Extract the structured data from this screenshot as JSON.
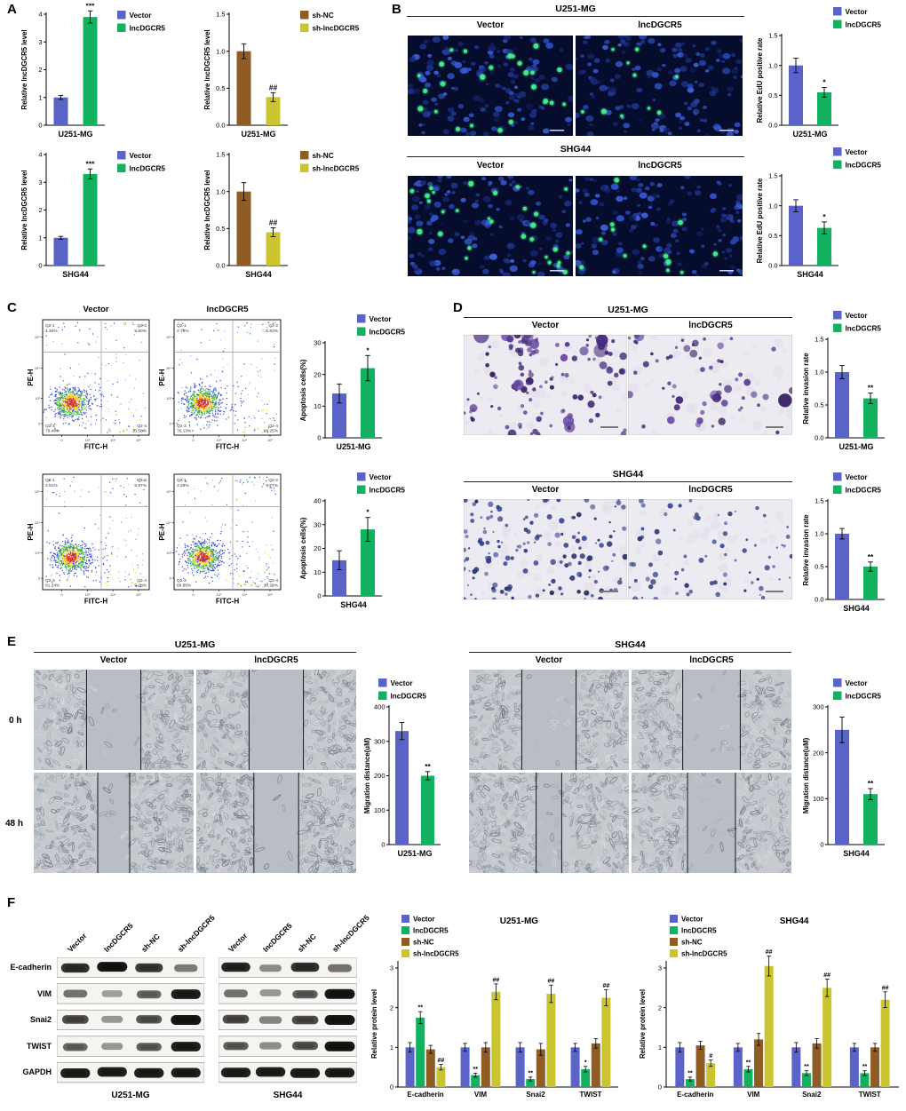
{
  "palette": {
    "Vector": "#5a63c8",
    "lncDGCR5": "#12b15f",
    "sh-NC": "#8e5c24",
    "sh-lncDGCR5": "#c9c42f"
  },
  "panels": {
    "A": {
      "label": "A",
      "charts": [
        {
          "ylabel": "Relative lncDGCR5 level",
          "xlabel": "U251-MG",
          "ymax": 4,
          "yticks": [
            0,
            1,
            2,
            3,
            4
          ],
          "legend": [
            "Vector",
            "lncDGCR5"
          ],
          "bars": [
            {
              "series": "Vector",
              "value": 1.0,
              "err": 0.07,
              "sig": ""
            },
            {
              "series": "lncDGCR5",
              "value": 3.9,
              "err": 0.22,
              "sig": "***"
            }
          ]
        },
        {
          "ylabel": "Relative lncDGCR5 level",
          "xlabel": "U251-MG",
          "ymax": 1.5,
          "yticks": [
            0,
            0.5,
            1,
            1.5
          ],
          "legend": [
            "sh-NC",
            "sh-lncDGCR5"
          ],
          "bars": [
            {
              "series": "sh-NC",
              "value": 1.0,
              "err": 0.1,
              "sig": ""
            },
            {
              "series": "sh-lncDGCR5",
              "value": 0.38,
              "err": 0.06,
              "sig": "##"
            }
          ]
        },
        {
          "ylabel": "Relative lncDGCR5 level",
          "xlabel": "SHG44",
          "ymax": 4,
          "yticks": [
            0,
            1,
            2,
            3,
            4
          ],
          "legend": [
            "Vector",
            "lncDGCR5"
          ],
          "bars": [
            {
              "series": "Vector",
              "value": 1.0,
              "err": 0.05,
              "sig": ""
            },
            {
              "series": "lncDGCR5",
              "value": 3.3,
              "err": 0.18,
              "sig": "***"
            }
          ]
        },
        {
          "ylabel": "Relative lncDGCR5 level",
          "xlabel": "SHG44",
          "ymax": 1.5,
          "yticks": [
            0,
            0.5,
            1,
            1.5
          ],
          "legend": [
            "sh-NC",
            "sh-lncDGCR5"
          ],
          "bars": [
            {
              "series": "sh-NC",
              "value": 1.0,
              "err": 0.12,
              "sig": ""
            },
            {
              "series": "sh-lncDGCR5",
              "value": 0.45,
              "err": 0.06,
              "sig": "##"
            }
          ]
        }
      ]
    },
    "B": {
      "label": "B",
      "groups": [
        {
          "title": "U251-MG",
          "cols": [
            "Vector",
            "lncDGCR5"
          ],
          "images": [
            {
              "green": 26,
              "seed": 101
            },
            {
              "green": 10,
              "seed": 102
            }
          ]
        },
        {
          "title": "SHG44",
          "cols": [
            "Vector",
            "lncDGCR5"
          ],
          "images": [
            {
              "green": 30,
              "seed": 103
            },
            {
              "green": 13,
              "seed": 104
            }
          ]
        }
      ],
      "charts": [
        {
          "ylabel": "Relative EdU positive rate",
          "xlabel": "U251-MG",
          "ymax": 1.5,
          "yticks": [
            0,
            0.5,
            1,
            1.5
          ],
          "legend": [
            "Vector",
            "lncDGCR5"
          ],
          "bars": [
            {
              "series": "Vector",
              "value": 1.0,
              "err": 0.12,
              "sig": ""
            },
            {
              "series": "lncDGCR5",
              "value": 0.55,
              "err": 0.08,
              "sig": "*"
            }
          ]
        },
        {
          "ylabel": "Relative EdU positive rate",
          "xlabel": "SHG44",
          "ymax": 1.5,
          "yticks": [
            0,
            0.5,
            1,
            1.5
          ],
          "legend": [
            "Vector",
            "lncDGCR5"
          ],
          "bars": [
            {
              "series": "Vector",
              "value": 1.0,
              "err": 0.1,
              "sig": ""
            },
            {
              "series": "lncDGCR5",
              "value": 0.63,
              "err": 0.1,
              "sig": "*"
            }
          ]
        }
      ]
    },
    "C": {
      "label": "C",
      "rows": [
        {
          "plots": [
            {
              "title": "Vector",
              "xlabel": "FITC-H",
              "ylabel": "PE-H",
              "seed": 201,
              "quads": {
                "q1": {
                  "name": "Q2-1",
                  "pct": "4.34%"
                },
                "q2": {
                  "name": "Q2-2",
                  "pct": "5.60%"
                },
                "q3": {
                  "name": "Q2-3",
                  "pct": "79.48%"
                },
                "q4": {
                  "name": "Q2-4",
                  "pct": "10.58%"
                }
              }
            },
            {
              "title": "lncDGCR5",
              "xlabel": "FITC-H",
              "ylabel": "PE-H",
              "seed": 202,
              "quads": {
                "q1": {
                  "name": "Q2-1",
                  "pct": "2.79%"
                },
                "q2": {
                  "name": "Q2-2",
                  "pct": "6.83%"
                },
                "q3": {
                  "name": "Q2-3",
                  "pct": "76.13%"
                },
                "q4": {
                  "name": "Q2-4",
                  "pct": "14.25%"
                }
              }
            }
          ]
        },
        {
          "plots": [
            {
              "title": "",
              "xlabel": "FITC-H",
              "ylabel": "PE-H",
              "seed": 203,
              "quads": {
                "q1": {
                  "name": "Q2-1",
                  "pct": "3.51%"
                },
                "q2": {
                  "name": "Q2-2",
                  "pct": "5.87%"
                },
                "q3": {
                  "name": "Q2-3",
                  "pct": "81.24%"
                },
                "q4": {
                  "name": "Q2-4",
                  "pct": "9.28%"
                }
              }
            },
            {
              "title": "",
              "xlabel": "FITC-H",
              "ylabel": "PE-H",
              "seed": 204,
              "quads": {
                "q1": {
                  "name": "Q2-1",
                  "pct": "2.28%"
                },
                "q2": {
                  "name": "Q2-2",
                  "pct": "9.77%"
                },
                "q3": {
                  "name": "Q2-3",
                  "pct": "69.66%"
                },
                "q4": {
                  "name": "Q2-4",
                  "pct": "18.29%"
                }
              }
            }
          ]
        }
      ],
      "charts": [
        {
          "ylabel": "Apoptosis cells(%)",
          "xlabel": "U251-MG",
          "ymax": 30,
          "yticks": [
            0,
            10,
            20,
            30
          ],
          "legend": [
            "Vector",
            "lncDGCR5"
          ],
          "bars": [
            {
              "series": "Vector",
              "value": 14,
              "err": 3,
              "sig": ""
            },
            {
              "series": "lncDGCR5",
              "value": 22,
              "err": 4,
              "sig": "*"
            }
          ]
        },
        {
          "ylabel": "Apoptosis cells(%)",
          "xlabel": "SHG44",
          "ymax": 40,
          "yticks": [
            0,
            10,
            20,
            30,
            40
          ],
          "legend": [
            "Vector",
            "lncDGCR5"
          ],
          "bars": [
            {
              "series": "Vector",
              "value": 15,
              "err": 4,
              "sig": ""
            },
            {
              "series": "lncDGCR5",
              "value": 28,
              "err": 5,
              "sig": "*"
            }
          ]
        }
      ]
    },
    "D": {
      "label": "D",
      "groups": [
        {
          "title": "U251-MG",
          "cols": [
            "Vector",
            "lncDGCR5"
          ],
          "images": [
            {
              "style": "u251",
              "count": 140,
              "seed": 301
            },
            {
              "style": "u251",
              "count": 65,
              "seed": 302
            }
          ]
        },
        {
          "title": "SHG44",
          "cols": [
            "Vector",
            "lncDGCR5"
          ],
          "images": [
            {
              "style": "shg",
              "count": 150,
              "seed": 303
            },
            {
              "style": "shg",
              "count": 75,
              "seed": 304
            }
          ]
        }
      ],
      "charts": [
        {
          "ylabel": "Relative invasion rate",
          "xlabel": "U251-MG",
          "ymax": 1.5,
          "yticks": [
            0,
            0.5,
            1,
            1.5
          ],
          "legend": [
            "Vector",
            "lncDGCR5"
          ],
          "bars": [
            {
              "series": "Vector",
              "value": 1.0,
              "err": 0.1,
              "sig": ""
            },
            {
              "series": "lncDGCR5",
              "value": 0.6,
              "err": 0.08,
              "sig": "**"
            }
          ]
        },
        {
          "ylabel": "Relative invasion rate",
          "xlabel": "SHG44",
          "ymax": 1.5,
          "yticks": [
            0,
            0.5,
            1,
            1.5
          ],
          "legend": [
            "Vector",
            "lncDGCR5"
          ],
          "bars": [
            {
              "series": "Vector",
              "value": 1.0,
              "err": 0.08,
              "sig": ""
            },
            {
              "series": "lncDGCR5",
              "value": 0.5,
              "err": 0.07,
              "sig": "**"
            }
          ]
        }
      ]
    },
    "E": {
      "label": "E",
      "row_labels": [
        "0 h",
        "48 h"
      ],
      "groups": [
        {
          "title": "U251-MG",
          "cols": [
            "Vector",
            "lncDGCR5"
          ],
          "wounds": [
            {
              "gap": 0.34,
              "seed": 401
            },
            {
              "gap": 0.34,
              "seed": 402
            },
            {
              "gap": 0.2,
              "seed": 403
            },
            {
              "gap": 0.28,
              "seed": 404
            }
          ]
        },
        {
          "title": "SHG44",
          "cols": [
            "Vector",
            "lncDGCR5"
          ],
          "wounds": [
            {
              "gap": 0.34,
              "seed": 405
            },
            {
              "gap": 0.36,
              "seed": 406
            },
            {
              "gap": 0.16,
              "seed": 407
            },
            {
              "gap": 0.3,
              "seed": 408
            }
          ]
        }
      ],
      "charts": [
        {
          "ylabel": "Migration distance(uM)",
          "xlabel": "U251-MG",
          "ymax": 400,
          "yticks": [
            0,
            100,
            200,
            300,
            400
          ],
          "legend": [
            "Vector",
            "lncDGCR5"
          ],
          "bars": [
            {
              "series": "Vector",
              "value": 330,
              "err": 25,
              "sig": ""
            },
            {
              "series": "lncDGCR5",
              "value": 200,
              "err": 12,
              "sig": "**"
            }
          ]
        },
        {
          "ylabel": "Migration distance(uM)",
          "xlabel": "SHG44",
          "ymax": 300,
          "yticks": [
            0,
            100,
            200,
            300
          ],
          "legend": [
            "Vector",
            "lncDGCR5"
          ],
          "bars": [
            {
              "series": "Vector",
              "value": 250,
              "err": 28,
              "sig": ""
            },
            {
              "series": "lncDGCR5",
              "value": 110,
              "err": 12,
              "sig": "**"
            }
          ]
        }
      ]
    },
    "F": {
      "label": "F",
      "lanes": [
        "Vector",
        "lncDGCR5",
        "sh-NC",
        "sh-lncDGCR5"
      ],
      "proteins": [
        "E-cadherin",
        "VIM",
        "Snai2",
        "TWIST",
        "GAPDH"
      ],
      "blots": [
        {
          "caption": "U251-MG",
          "seed": 501,
          "bands": [
            [
              0.85,
              1,
              0.8,
              0.45
            ],
            [
              0.5,
              0.25,
              0.55,
              0.95
            ],
            [
              0.7,
              0.3,
              0.65,
              1
            ],
            [
              0.55,
              0.3,
              0.6,
              0.95
            ],
            [
              0.95,
              0.95,
              0.95,
              0.95
            ]
          ]
        },
        {
          "caption": "SHG44",
          "seed": 502,
          "bands": [
            [
              0.9,
              0.35,
              0.85,
              0.5
            ],
            [
              0.5,
              0.3,
              0.6,
              1
            ],
            [
              0.7,
              0.4,
              0.7,
              1
            ],
            [
              0.6,
              0.35,
              0.65,
              1
            ],
            [
              0.95,
              0.95,
              0.95,
              0.95
            ]
          ]
        }
      ],
      "charts": [
        {
          "title": "U251-MG",
          "ylabel": "Relative protein level",
          "ymax": 3,
          "yticks": [
            0,
            1,
            2,
            3
          ],
          "categories": [
            "E-cadherin",
            "VIM",
            "Snai2",
            "TWIST"
          ],
          "series": [
            "Vector",
            "lncDGCR5",
            "sh-NC",
            "sh-lncDGCR5"
          ],
          "values": [
            [
              1.0,
              1.75,
              0.95,
              0.5
            ],
            [
              1.0,
              0.3,
              1.0,
              2.4
            ],
            [
              1.0,
              0.2,
              0.95,
              2.35
            ],
            [
              1.0,
              0.45,
              1.1,
              2.25
            ]
          ],
          "errors": [
            [
              0.12,
              0.15,
              0.1,
              0.07
            ],
            [
              0.1,
              0.05,
              0.12,
              0.2
            ],
            [
              0.12,
              0.05,
              0.15,
              0.22
            ],
            [
              0.1,
              0.07,
              0.12,
              0.2
            ]
          ],
          "sigs": [
            [
              "",
              "**",
              "",
              "##"
            ],
            [
              "",
              "**",
              "",
              "##"
            ],
            [
              "",
              "**",
              "",
              "##"
            ],
            [
              "",
              "*",
              "",
              "##"
            ]
          ]
        },
        {
          "title": "SHG44",
          "ylabel": "Relative protein level",
          "ymax": 3,
          "yticks": [
            0,
            1,
            2,
            3
          ],
          "categories": [
            "E-cadherin",
            "VIM",
            "Snai2",
            "TWIST"
          ],
          "series": [
            "Vector",
            "lncDGCR5",
            "sh-NC",
            "sh-lncDGCR5"
          ],
          "values": [
            [
              1.0,
              0.2,
              1.05,
              0.6
            ],
            [
              1.0,
              0.45,
              1.2,
              3.05
            ],
            [
              1.0,
              0.35,
              1.1,
              2.5
            ],
            [
              1.0,
              0.35,
              1.0,
              2.2
            ]
          ],
          "errors": [
            [
              0.12,
              0.05,
              0.1,
              0.08
            ],
            [
              0.1,
              0.07,
              0.15,
              0.25
            ],
            [
              0.12,
              0.06,
              0.12,
              0.22
            ],
            [
              0.1,
              0.06,
              0.1,
              0.2
            ]
          ],
          "sigs": [
            [
              "",
              "**",
              "",
              "#"
            ],
            [
              "",
              "**",
              "",
              "##"
            ],
            [
              "",
              "**",
              "",
              "##"
            ],
            [
              "",
              "**",
              "",
              "##"
            ]
          ]
        }
      ]
    }
  }
}
